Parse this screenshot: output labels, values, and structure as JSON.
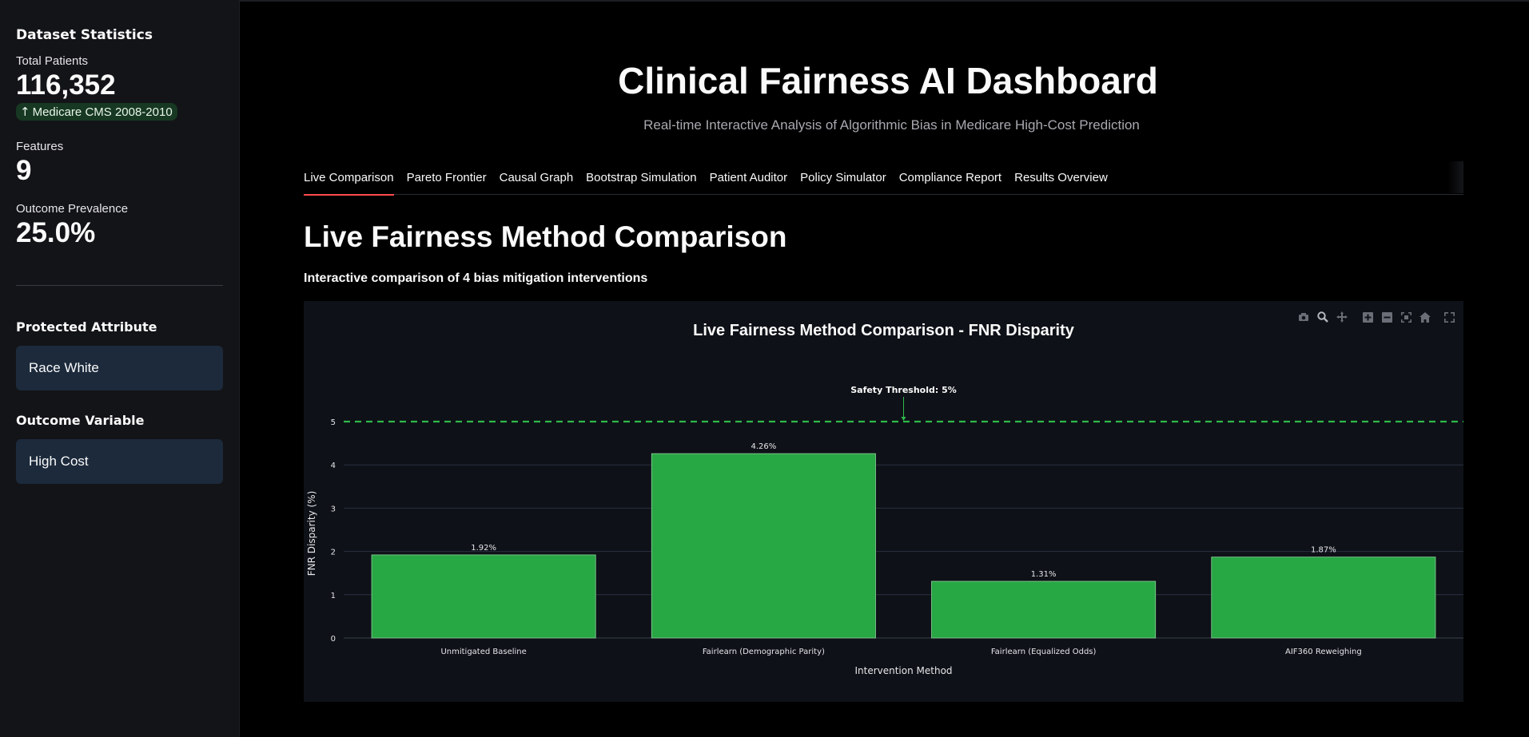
{
  "sidebar": {
    "heading": "Dataset Statistics",
    "metrics": [
      {
        "label": "Total Patients",
        "value": "116,352",
        "delta": "Medicare CMS 2008-2010"
      },
      {
        "label": "Features",
        "value": "9"
      },
      {
        "label": "Outcome Prevalence",
        "value": "25.0%"
      }
    ],
    "protected_attribute": {
      "heading": "Protected Attribute",
      "value": "Race White"
    },
    "outcome_variable": {
      "heading": "Outcome Variable",
      "value": "High Cost"
    }
  },
  "header": {
    "title": "Clinical Fairness AI Dashboard",
    "subtitle": "Real-time Interactive Analysis of Algorithmic Bias in Medicare High-Cost Prediction"
  },
  "tabs": [
    {
      "label": "Live Comparison",
      "active": true
    },
    {
      "label": "Pareto Frontier"
    },
    {
      "label": "Causal Graph"
    },
    {
      "label": "Bootstrap Simulation"
    },
    {
      "label": "Patient Auditor"
    },
    {
      "label": "Policy Simulator"
    },
    {
      "label": "Compliance Report"
    },
    {
      "label": "Results Overview"
    }
  ],
  "section": {
    "title": "Live Fairness Method Comparison",
    "subtitle": "Interactive comparison of 4 bias mitigation interventions"
  },
  "modebar_icons": [
    "camera-icon",
    "zoom-icon",
    "pan-icon",
    "zoom-in-icon",
    "zoom-out-icon",
    "autoscale-icon",
    "home-icon",
    "fullscreen-icon"
  ],
  "chart_data": {
    "type": "bar",
    "title": "Live Fairness Method Comparison - FNR Disparity",
    "xlabel": "Intervention Method",
    "ylabel": "FNR Disparity (%)",
    "categories": [
      "Unmitigated Baseline",
      "Fairlearn (Demographic Parity)",
      "Fairlearn (Equalized Odds)",
      "AIF360 Reweighing"
    ],
    "values": [
      1.92,
      4.26,
      1.31,
      1.87
    ],
    "data_labels": [
      "1.92%",
      "4.26%",
      "1.31%",
      "1.87%"
    ],
    "yticks": [
      0,
      1,
      2,
      3,
      4,
      5
    ],
    "ylim": [
      0,
      5
    ],
    "threshold": {
      "value": 5,
      "label": "Safety Threshold: 5%",
      "color": "#2eb84a"
    },
    "bar_color": "#28a745",
    "grid": true
  }
}
